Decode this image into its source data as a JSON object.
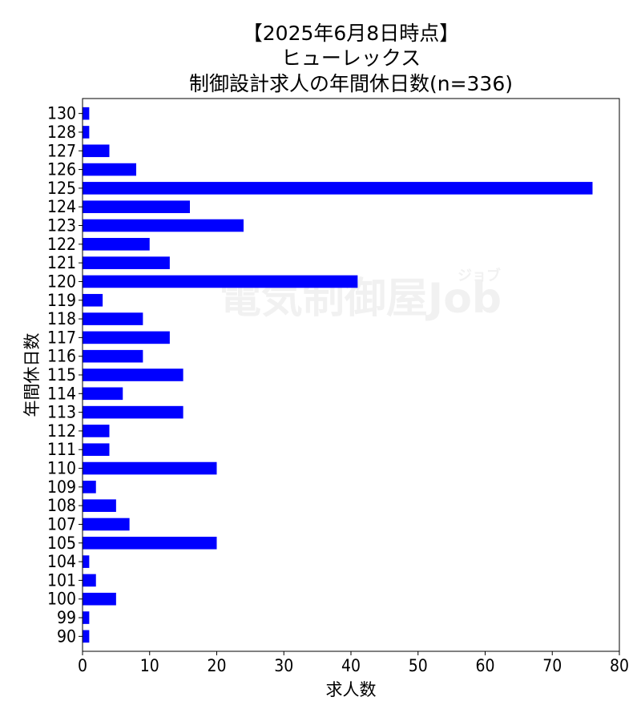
{
  "chart_data": {
    "type": "bar",
    "orientation": "horizontal",
    "title_lines": [
      "【2025年6月8日時点】",
      "ヒューレックス",
      "制御設計求人の年間休日数(n=336)"
    ],
    "xlabel": "求人数",
    "ylabel": "年間休日数",
    "categories": [
      "130",
      "128",
      "127",
      "126",
      "125",
      "124",
      "123",
      "122",
      "121",
      "120",
      "119",
      "118",
      "117",
      "116",
      "115",
      "114",
      "113",
      "112",
      "111",
      "110",
      "109",
      "108",
      "107",
      "105",
      "104",
      "101",
      "100",
      "99",
      "90"
    ],
    "values": [
      1,
      1,
      4,
      8,
      76,
      16,
      24,
      10,
      13,
      41,
      3,
      9,
      13,
      9,
      15,
      6,
      15,
      4,
      4,
      20,
      2,
      5,
      7,
      20,
      1,
      2,
      5,
      1,
      1
    ],
    "xlim": [
      0,
      80
    ],
    "xticks": [
      0,
      10,
      20,
      30,
      40,
      50,
      60,
      70,
      80
    ],
    "bar_color": "#0000ff",
    "grid": false,
    "legend": "none"
  },
  "watermark": {
    "main": "電気制御屋Job",
    "small": "ジョブ"
  }
}
